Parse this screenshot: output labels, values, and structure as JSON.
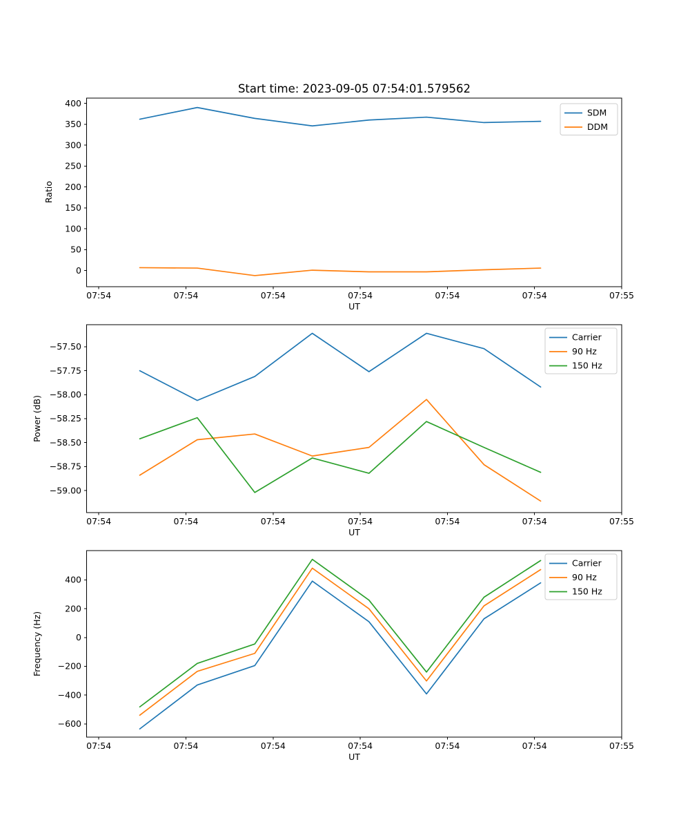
{
  "figure": {
    "title": "Start time: 2023-09-05 07:54:01.579562",
    "background_color": "#ffffff",
    "axis_color": "#000000",
    "legend_border_color": "#cccccc"
  },
  "x_axis": {
    "label": "UT",
    "tick_labels": [
      "07:54",
      "07:54",
      "07:54",
      "07:54",
      "07:54",
      "07:54",
      "07:55"
    ],
    "tick_seconds": [
      0,
      10,
      20,
      30,
      40,
      50,
      60
    ],
    "xlim_seconds": [
      -1.4,
      60
    ],
    "point_seconds": [
      4.7,
      11.3,
      17.9,
      24.5,
      31.0,
      37.6,
      44.2,
      50.7
    ]
  },
  "chart_data": [
    {
      "type": "line",
      "title": "Start time: 2023-09-05 07:54:01.579562",
      "xlabel": "UT",
      "ylabel": "Ratio",
      "ylim": [
        -38.5,
        412.5
      ],
      "yticks": [
        0,
        50,
        100,
        150,
        200,
        250,
        300,
        350,
        400
      ],
      "ytick_labels": [
        "0",
        "50",
        "100",
        "150",
        "200",
        "250",
        "300",
        "350",
        "400"
      ],
      "grid": false,
      "legend_position": "upper right",
      "series": [
        {
          "name": "SDM",
          "color": "#1f77b4",
          "values": [
            362,
            390,
            364,
            346,
            360,
            367,
            354,
            357
          ]
        },
        {
          "name": "DDM",
          "color": "#ff7f0e",
          "values": [
            7,
            6,
            -12,
            1,
            -3,
            -3,
            2,
            6
          ]
        }
      ]
    },
    {
      "type": "line",
      "title": "",
      "xlabel": "UT",
      "ylabel": "Power (dB)",
      "ylim": [
        -59.23,
        -57.27
      ],
      "yticks": [
        -59.0,
        -58.75,
        -58.5,
        -58.25,
        -58.0,
        -57.75,
        -57.5
      ],
      "ytick_labels": [
        "−59.00",
        "−58.75",
        "−58.50",
        "−58.25",
        "−58.00",
        "−57.75",
        "−57.50"
      ],
      "grid": false,
      "legend_position": "upper right",
      "series": [
        {
          "name": "Carrier",
          "color": "#1f77b4",
          "values": [
            -57.75,
            -58.06,
            -57.81,
            -57.36,
            -57.76,
            -57.36,
            -57.52,
            -57.92
          ]
        },
        {
          "name": "90 Hz",
          "color": "#ff7f0e",
          "values": [
            -58.84,
            -58.47,
            -58.41,
            -58.64,
            -58.55,
            -58.05,
            -58.73,
            -59.11
          ]
        },
        {
          "name": "150 Hz",
          "color": "#2ca02c",
          "values": [
            -58.46,
            -58.24,
            -59.02,
            -58.66,
            -58.82,
            -58.28,
            -58.55,
            -58.81
          ]
        }
      ]
    },
    {
      "type": "line",
      "title": "",
      "xlabel": "UT",
      "ylabel": "Frequency (Hz)",
      "ylim": [
        -692,
        604
      ],
      "yticks": [
        -600,
        -400,
        -200,
        0,
        200,
        400
      ],
      "ytick_labels": [
        "−600",
        "−400",
        "−200",
        "0",
        "200",
        "400"
      ],
      "grid": false,
      "legend_position": "upper right",
      "series": [
        {
          "name": "Carrier",
          "color": "#1f77b4",
          "values": [
            -635,
            -330,
            -195,
            392,
            110,
            -392,
            130,
            380
          ]
        },
        {
          "name": "90 Hz",
          "color": "#ff7f0e",
          "values": [
            -540,
            -235,
            -110,
            482,
            200,
            -302,
            220,
            472
          ]
        },
        {
          "name": "150 Hz",
          "color": "#2ca02c",
          "values": [
            -482,
            -180,
            -45,
            543,
            260,
            -240,
            280,
            535
          ]
        }
      ]
    }
  ]
}
